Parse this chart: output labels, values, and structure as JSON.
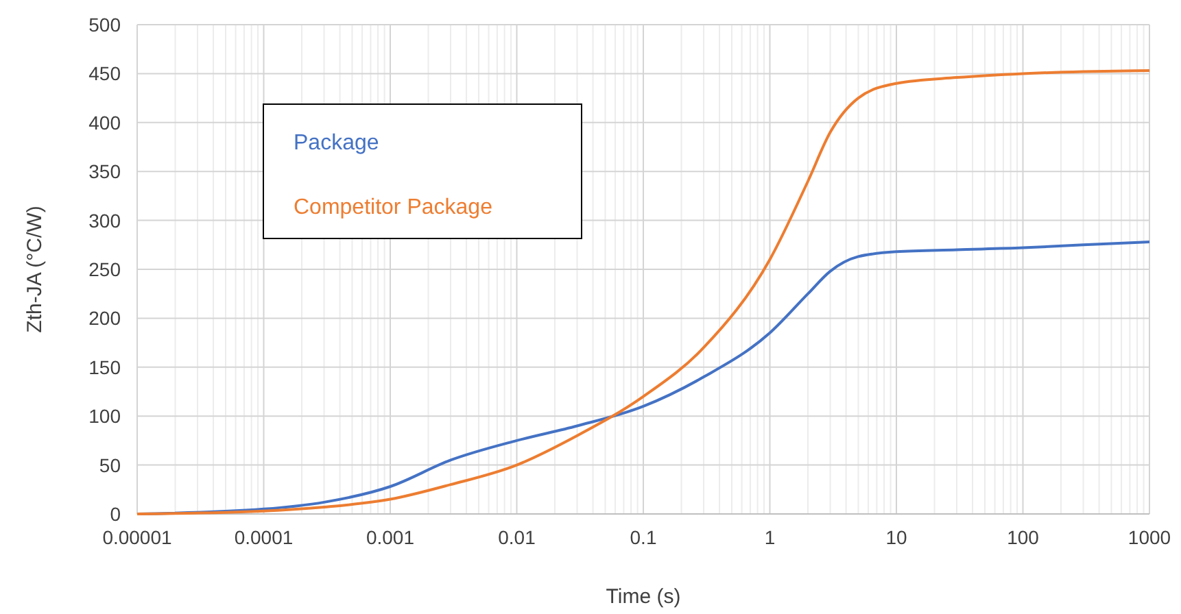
{
  "chart_data": {
    "type": "line",
    "xlabel": "Time (s)",
    "ylabel": "Zth-JA (°C/W)",
    "log": "x",
    "xlim": [
      1e-05,
      1000
    ],
    "xticks": [
      {
        "value": 1e-05,
        "label": "0.00001"
      },
      {
        "value": 0.0001,
        "label": "0.0001"
      },
      {
        "value": 0.001,
        "label": "0.001"
      },
      {
        "value": 0.01,
        "label": "0.01"
      },
      {
        "value": 0.1,
        "label": "0.1"
      },
      1,
      10,
      100,
      1000
    ],
    "ylim": [
      0,
      500
    ],
    "yticks": [
      0,
      50,
      100,
      150,
      200,
      250,
      300,
      350,
      400,
      450,
      500
    ],
    "grid": true,
    "legend": "top left",
    "marker": "none",
    "line_style": "solid",
    "x": [
      1e-05,
      0.0001,
      0.0003,
      0.001,
      0.003,
      0.01,
      0.03,
      0.1,
      0.3,
      1,
      2,
      3,
      5,
      10,
      30,
      100,
      300,
      1000
    ],
    "series": [
      {
        "name": "Package",
        "color": "#4472c4",
        "values": [
          0,
          5,
          12,
          28,
          55,
          75,
          90,
          110,
          140,
          185,
          225,
          248,
          263,
          268,
          270,
          272,
          275,
          278
        ]
      },
      {
        "name": "Competitor Package",
        "color": "#ed7d31",
        "values": [
          0,
          3,
          7,
          15,
          30,
          50,
          80,
          120,
          170,
          260,
          340,
          390,
          425,
          440,
          446,
          450,
          452,
          453
        ]
      }
    ]
  }
}
